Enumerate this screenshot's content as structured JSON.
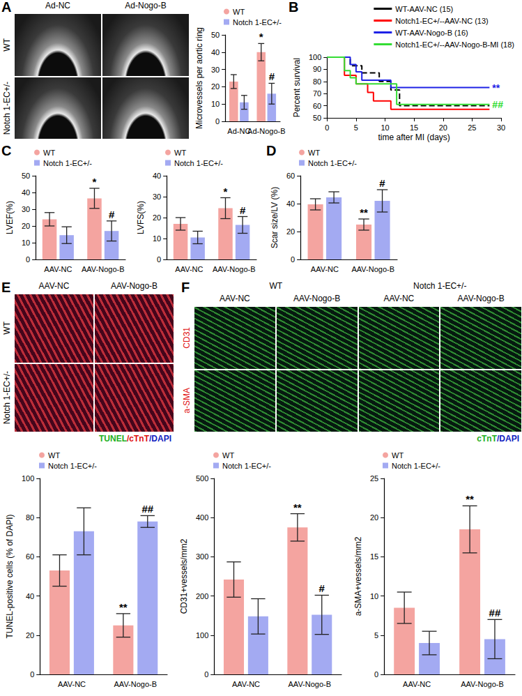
{
  "image_panels": [
    {
      "panel": "A",
      "columns": [
        "Ad-NC",
        "Ad-Nogo-B"
      ],
      "rows": [
        {
          "text": "WT",
          "color": "#000000"
        },
        {
          "text": "Notch 1-EC+/-",
          "color": "#000000"
        }
      ]
    },
    {
      "panel": "E",
      "columns": [
        "AAV-NC",
        "AAV-Nogo-B"
      ],
      "rows": [
        {
          "text": "WT",
          "color": "#000000"
        },
        {
          "text": "Notch 1-EC+/-",
          "color": "#000000"
        }
      ],
      "caption": [
        {
          "text": "TUNEL",
          "color": "#22b022"
        },
        {
          "text": "/cTnT",
          "color": "#e01010"
        },
        {
          "text": "/DAPI",
          "color": "#1020c0"
        }
      ]
    },
    {
      "panel": "F",
      "column_groups": [
        "WT",
        "Notch 1-EC+/-"
      ],
      "columns": [
        "AAV-NC",
        "AAV-Nogo-B",
        "AAV-NC",
        "AAV-Nogo-B"
      ],
      "rows": [
        {
          "text": "CD31",
          "color": "#e01010"
        },
        {
          "text": "a-SMA",
          "color": "#e01010"
        }
      ],
      "caption": [
        {
          "text": "cTnT",
          "color": "#22b022"
        },
        {
          "text": "/DAPI",
          "color": "#1020c0"
        }
      ]
    }
  ],
  "chart_data": [
    {
      "type": "bar",
      "y_label": "Microvessels per aortic ring",
      "categories": [
        "Ad-NC",
        "Ad-Nogo-B"
      ],
      "series": [
        {
          "name": "WT",
          "color": "#f4a4a0",
          "values": [
            23,
            40
          ],
          "errors": [
            4,
            5
          ],
          "annotations": [
            null,
            "*"
          ]
        },
        {
          "name": "Notch 1-EC+/-",
          "color": "#a3aaf2",
          "values": [
            11,
            16
          ],
          "errors": [
            4,
            6
          ],
          "annotations": [
            null,
            "#"
          ]
        }
      ],
      "ylim": [
        0,
        50
      ],
      "yticks": [
        0,
        10,
        20,
        30,
        40,
        50
      ],
      "grid": false,
      "legend": "top-left"
    },
    {
      "panel": "B",
      "type": "line",
      "x_label": "time after MI (days)",
      "y_label": "Percent survival",
      "series": [
        {
          "name": "WT-AAV-NC (15)",
          "color": "#000000",
          "line_style": "dashed",
          "x": [
            0,
            4,
            6,
            9,
            11,
            12.5,
            28
          ],
          "values": [
            100,
            93,
            87,
            80,
            73,
            60,
            60
          ]
        },
        {
          "name": "Notch1-EC+/--AAV-NC (13)",
          "color": "#ff0000",
          "line_style": "solid",
          "x": [
            0,
            3,
            5,
            7,
            8,
            11,
            28
          ],
          "values": [
            100,
            85,
            78,
            71,
            64,
            57,
            57
          ]
        },
        {
          "name": "WT-AAV-Nogo-B (16)",
          "color": "#1e22e6",
          "line_style": "solid",
          "x": [
            0,
            4,
            5,
            6,
            11,
            28
          ],
          "values": [
            100,
            94,
            88,
            81,
            75,
            75
          ],
          "annotation": "**"
        },
        {
          "name": "Notch1-EC+/--AAV-Nogo-B-MI (18)",
          "color": "#33dd33",
          "line_style": "solid",
          "x": [
            0,
            3,
            4,
            5,
            12,
            28
          ],
          "values": [
            100,
            89,
            83,
            78,
            61,
            61
          ],
          "annotation": "##"
        }
      ],
      "xlim": [
        0,
        30
      ],
      "xticks": [
        0,
        5,
        10,
        15,
        20,
        25,
        30
      ],
      "ylim": [
        50,
        100
      ],
      "yticks": [
        50,
        60,
        70,
        80,
        90,
        100
      ],
      "grid": false,
      "legend": "top-right"
    },
    {
      "panel": "C",
      "type": "bar",
      "y_label": "LVEF(%)",
      "categories": [
        "AAV-NC",
        "AAV-Nogo-B"
      ],
      "series": [
        {
          "name": "WT",
          "color": "#f4a4a0",
          "values": [
            24,
            36.5
          ],
          "errors": [
            4,
            6
          ],
          "annotations": [
            null,
            "*"
          ]
        },
        {
          "name": "Notch 1-EC+/-",
          "color": "#a3aaf2",
          "values": [
            14.5,
            17
          ],
          "errors": [
            5,
            6
          ],
          "annotations": [
            null,
            "#"
          ]
        }
      ],
      "ylim": [
        0,
        50
      ],
      "yticks": [
        0,
        10,
        20,
        30,
        40,
        50
      ],
      "grid": false,
      "legend": "top-left"
    },
    {
      "type": "bar",
      "y_label": "LVFS(%)",
      "categories": [
        "AAV-NC",
        "AAV-Nogo-B"
      ],
      "series": [
        {
          "name": "WT",
          "color": "#f4a4a0",
          "values": [
            17,
            24.5
          ],
          "errors": [
            3,
            5
          ],
          "annotations": [
            null,
            "*"
          ]
        },
        {
          "name": "Notch 1-EC+/-",
          "color": "#a3aaf2",
          "values": [
            10.5,
            16.5
          ],
          "errors": [
            3,
            4
          ],
          "annotations": [
            null,
            "#"
          ]
        }
      ],
      "ylim": [
        0,
        40
      ],
      "yticks": [
        0,
        10,
        20,
        30,
        40
      ],
      "grid": false,
      "legend": "top-left"
    },
    {
      "panel": "D",
      "type": "bar",
      "y_label": "Scar size/LV (%)",
      "categories": [
        "AAV-NC",
        "AAV-Nogo-B"
      ],
      "series": [
        {
          "name": "WT",
          "color": "#f4a4a0",
          "values": [
            39.5,
            25
          ],
          "errors": [
            4,
            4
          ],
          "annotations": [
            null,
            "**"
          ]
        },
        {
          "name": "Notch 1-EC+/-",
          "color": "#a3aaf2",
          "values": [
            44.5,
            42
          ],
          "errors": [
            4,
            8
          ],
          "annotations": [
            null,
            "#"
          ]
        }
      ],
      "ylim": [
        0,
        60
      ],
      "yticks": [
        0,
        20,
        40,
        60
      ],
      "grid": false,
      "legend": "top-left"
    },
    {
      "type": "bar",
      "y_label": "TUNEL-positive cells (% of DAPI)",
      "categories": [
        "AAV-NC",
        "AAV-Nogo-B"
      ],
      "series": [
        {
          "name": "WT",
          "color": "#f4a4a0",
          "values": [
            53,
            25
          ],
          "errors": [
            8,
            6
          ],
          "annotations": [
            null,
            "**"
          ]
        },
        {
          "name": "Notch 1-EC+/-",
          "color": "#a3aaf2",
          "values": [
            73,
            78
          ],
          "errors": [
            12,
            3
          ],
          "annotations": [
            null,
            "##"
          ]
        }
      ],
      "ylim": [
        0,
        100
      ],
      "yticks": [
        0,
        20,
        40,
        60,
        80,
        100
      ],
      "grid": false,
      "legend": "top-left"
    },
    {
      "type": "bar",
      "y_label": "CD31+vessels/mm2",
      "categories": [
        "AAV-NC",
        "AAV-Nogo-B"
      ],
      "series": [
        {
          "name": "WT",
          "color": "#f4a4a0",
          "values": [
            242,
            375
          ],
          "errors": [
            45,
            35
          ],
          "annotations": [
            null,
            "**"
          ]
        },
        {
          "name": "Notch 1-EC+/-",
          "color": "#a3aaf2",
          "values": [
            148,
            152
          ],
          "errors": [
            45,
            50
          ],
          "annotations": [
            null,
            "#"
          ]
        }
      ],
      "ylim": [
        0,
        500
      ],
      "yticks": [
        0,
        100,
        200,
        300,
        400,
        500
      ],
      "grid": false,
      "legend": "top-left"
    },
    {
      "type": "bar",
      "y_label": "a-SMA+vessels/mm2",
      "categories": [
        "AAV-NC",
        "AAV-Nogo-B"
      ],
      "series": [
        {
          "name": "WT",
          "color": "#f4a4a0",
          "values": [
            8.5,
            18.5
          ],
          "errors": [
            2,
            3
          ],
          "annotations": [
            null,
            "**"
          ]
        },
        {
          "name": "Notch 1-EC+/-",
          "color": "#a3aaf2",
          "values": [
            4,
            4.5
          ],
          "errors": [
            1.5,
            2.5
          ],
          "annotations": [
            null,
            "##"
          ]
        }
      ],
      "ylim": [
        0,
        25
      ],
      "yticks": [
        0,
        5,
        10,
        15,
        20,
        25
      ],
      "grid": false,
      "legend": "top-left"
    }
  ]
}
